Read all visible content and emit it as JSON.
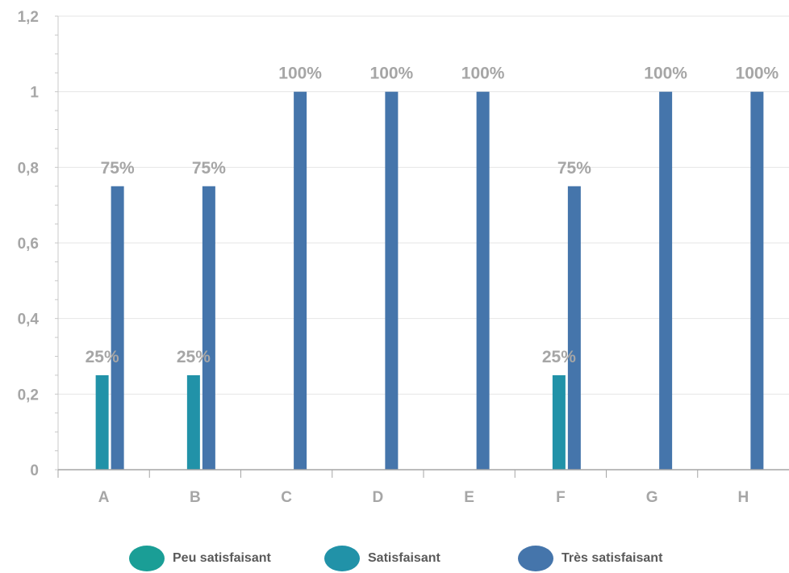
{
  "chart_data": {
    "type": "bar",
    "categories": [
      "A",
      "B",
      "C",
      "D",
      "E",
      "F",
      "G",
      "H"
    ],
    "series": [
      {
        "name": "Peu satisfaisant",
        "color": "#1a9e96",
        "values": [
          0,
          0,
          0,
          0,
          0,
          0,
          0,
          0
        ]
      },
      {
        "name": "Satisfaisant",
        "color": "#2192a8",
        "values": [
          0.25,
          0.25,
          0,
          0,
          0,
          0.25,
          0,
          0
        ]
      },
      {
        "name": "Très satisfaisant",
        "color": "#4575ab",
        "values": [
          0.75,
          0.75,
          1,
          1,
          1,
          0.75,
          1,
          1
        ]
      }
    ],
    "data_labels": [
      {
        "category": "A",
        "series": "Satisfaisant",
        "text": "25%"
      },
      {
        "category": "A",
        "series": "Très satisfaisant",
        "text": "75%"
      },
      {
        "category": "B",
        "series": "Satisfaisant",
        "text": "25%"
      },
      {
        "category": "B",
        "series": "Très satisfaisant",
        "text": "75%"
      },
      {
        "category": "C",
        "series": "Très satisfaisant",
        "text": "100%"
      },
      {
        "category": "D",
        "series": "Très satisfaisant",
        "text": "100%"
      },
      {
        "category": "E",
        "series": "Très satisfaisant",
        "text": "100%"
      },
      {
        "category": "F",
        "series": "Satisfaisant",
        "text": "25%"
      },
      {
        "category": "F",
        "series": "Très satisfaisant",
        "text": "75%"
      },
      {
        "category": "G",
        "series": "Très satisfaisant",
        "text": "100%"
      },
      {
        "category": "H",
        "series": "Très satisfaisant",
        "text": "100%"
      }
    ],
    "y_ticks": [
      "0",
      "0,2",
      "0,4",
      "0,6",
      "0,8",
      "1",
      "1,2"
    ],
    "ylim": [
      0,
      1.2
    ],
    "title": "",
    "xlabel": "",
    "ylabel": "",
    "grid": true,
    "legend_position": "bottom",
    "label_color": "#a6a6a6",
    "axis_text_color": "#a6a6a6"
  },
  "legend": {
    "items": [
      {
        "label": "Peu satisfaisant",
        "color": "#1a9e96"
      },
      {
        "label": "Satisfaisant",
        "color": "#2192a8"
      },
      {
        "label": "Très satisfaisant",
        "color": "#4575ab"
      }
    ]
  }
}
